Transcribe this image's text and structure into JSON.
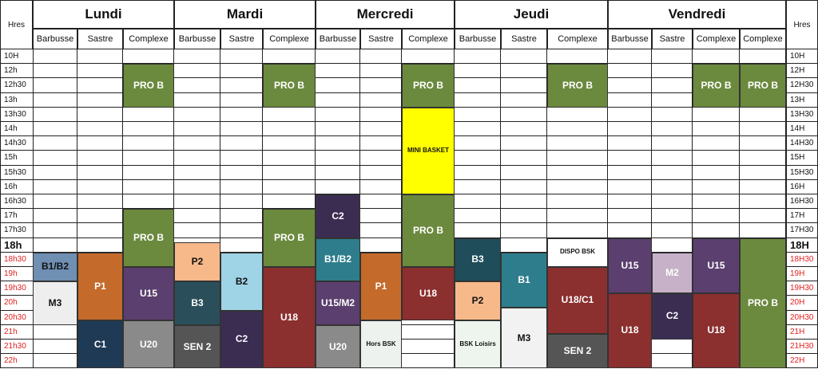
{
  "title_left": "Hres",
  "title_right": "Hres",
  "days": [
    {
      "name": "Lundi",
      "venues": [
        "Barbusse",
        "Sastre",
        "Complexe"
      ]
    },
    {
      "name": "Mardi",
      "venues": [
        "Barbusse",
        "Sastre",
        "Complexe"
      ]
    },
    {
      "name": "Mercredi",
      "venues": [
        "Barbusse",
        "Sastre",
        "Complexe"
      ]
    },
    {
      "name": "Jeudi",
      "venues": [
        "Barbusse",
        "Sastre",
        "Complexe"
      ]
    },
    {
      "name": "Vendredi",
      "venues": [
        "Barbusse",
        "Sastre",
        "Complexe",
        "Complexe"
      ]
    }
  ],
  "times_left": [
    "10H",
    "12h",
    "12h30",
    "13h",
    "13h30",
    "14h",
    "14h30",
    "15h",
    "15h30",
    "16h",
    "16h30",
    "17h",
    "17h30",
    "18h",
    "18h30",
    "19h",
    "19h30",
    "20h",
    "20h30",
    "21h",
    "21h30",
    "22h"
  ],
  "times_right": [
    "10H",
    "12H",
    "12H30",
    "13H",
    "13H30",
    "14H",
    "14H30",
    "15H",
    "15H30",
    "16H",
    "16H30",
    "17H",
    "17H30",
    "18H",
    "18H30",
    "19H",
    "19H30",
    "20H",
    "20H30",
    "21H",
    "21H30",
    "22H"
  ],
  "sessions": [
    {
      "label": "PRO B",
      "col": 2,
      "start": 1,
      "end": 4,
      "color": "#6b8a3e"
    },
    {
      "label": "PRO B",
      "col": 5,
      "start": 1,
      "end": 4,
      "color": "#6b8a3e"
    },
    {
      "label": "PRO B",
      "col": 8,
      "start": 1,
      "end": 4,
      "color": "#6b8a3e"
    },
    {
      "label": "PRO B",
      "col": 11,
      "start": 1,
      "end": 4,
      "color": "#6b8a3e"
    },
    {
      "label": "PRO B",
      "col": 14,
      "start": 1,
      "end": 4,
      "color": "#6b8a3e"
    },
    {
      "label": "PRO B",
      "col": 15,
      "start": 1,
      "end": 4,
      "color": "#6b8a3e"
    },
    {
      "label": "MINI BASKET",
      "col": 8,
      "start": 4,
      "end": 10,
      "color": "#ffff00",
      "dark": true,
      "size": "small"
    },
    {
      "label": "C2",
      "col": 6,
      "start": 10,
      "end": 13,
      "color": "#3b2d52"
    },
    {
      "label": "PRO B",
      "col": 8,
      "start": 10,
      "end": 15,
      "color": "#6b8a3e"
    },
    {
      "label": "PRO B",
      "col": 2,
      "start": 11,
      "end": 15,
      "color": "#6b8a3e"
    },
    {
      "label": "PRO B",
      "col": 5,
      "start": 11,
      "end": 15,
      "color": "#6b8a3e"
    },
    {
      "label": "B3",
      "col": 9,
      "start": 13,
      "end": 16,
      "color": "#1f4d5a"
    },
    {
      "label": "DISPO BSK",
      "col": 11,
      "start": 13,
      "end": 15,
      "color": "#ffffff",
      "dark": true,
      "size": "small"
    },
    {
      "label": "B1/B2",
      "col": 6,
      "start": 13,
      "end": 16,
      "color": "#2e7d8c"
    },
    {
      "label": "P2",
      "col": 3,
      "start": 13.3,
      "end": 16,
      "color": "#f7b98a",
      "dark": true
    },
    {
      "label": "U15",
      "col": 12,
      "start": 13,
      "end": 16.8,
      "color": "#5b3f6e"
    },
    {
      "label": "U15",
      "col": 14,
      "start": 13,
      "end": 16.8,
      "color": "#5b3f6e"
    },
    {
      "label": "PRO B",
      "col": 15,
      "start": 13,
      "end": 22,
      "color": "#6b8a3e"
    },
    {
      "label": "B1/B2",
      "col": 0,
      "start": 14,
      "end": 16,
      "color": "#6f8fb3",
      "dark": true
    },
    {
      "label": "P1",
      "col": 1,
      "start": 14,
      "end": 18.7,
      "color": "#c46a2a"
    },
    {
      "label": "B2",
      "col": 4,
      "start": 14,
      "end": 18,
      "color": "#9fd3e6",
      "dark": true
    },
    {
      "label": "P1",
      "col": 7,
      "start": 14,
      "end": 18.7,
      "color": "#c46a2a"
    },
    {
      "label": "B1",
      "col": 10,
      "start": 14,
      "end": 17.8,
      "color": "#2e7d8c"
    },
    {
      "label": "M2",
      "col": 13,
      "start": 14,
      "end": 16.8,
      "color": "#c7b1c9"
    },
    {
      "label": "U15",
      "col": 2,
      "start": 15,
      "end": 18.7,
      "color": "#5b3f6e"
    },
    {
      "label": "U18",
      "col": 5,
      "start": 15,
      "end": 22,
      "color": "#8b2f2f"
    },
    {
      "label": "U18",
      "col": 8,
      "start": 15,
      "end": 18.7,
      "color": "#8b2f2f"
    },
    {
      "label": "U18/C1",
      "col": 11,
      "start": 15,
      "end": 19.6,
      "color": "#8b2f2f"
    },
    {
      "label": "U15/M2",
      "col": 6,
      "start": 16,
      "end": 19,
      "color": "#5b3f6e"
    },
    {
      "label": "P2",
      "col": 9,
      "start": 16,
      "end": 18.7,
      "color": "#f7b98a",
      "dark": true
    },
    {
      "label": "B3",
      "col": 3,
      "start": 16,
      "end": 19,
      "color": "#2a4f5a"
    },
    {
      "label": "M3",
      "col": 0,
      "start": 16,
      "end": 19,
      "color": "#eeeeee",
      "dark": true
    },
    {
      "label": "U18",
      "col": 12,
      "start": 16.8,
      "end": 22,
      "color": "#8b2f2f"
    },
    {
      "label": "C2",
      "col": 13,
      "start": 16.8,
      "end": 20,
      "color": "#3b2d52"
    },
    {
      "label": "U18",
      "col": 14,
      "start": 16.8,
      "end": 22,
      "color": "#8b2f2f"
    },
    {
      "label": "M3",
      "col": 10,
      "start": 17.8,
      "end": 22,
      "color": "#f2f2f2",
      "dark": true
    },
    {
      "label": "C1",
      "col": 1,
      "start": 18.7,
      "end": 22,
      "color": "#1f3a55"
    },
    {
      "label": "C2",
      "col": 4,
      "start": 18,
      "end": 22,
      "color": "#3b2d52"
    },
    {
      "label": "U20",
      "col": 2,
      "start": 18.7,
      "end": 22,
      "color": "#8a8a8a"
    },
    {
      "label": "Hors BSK",
      "col": 7,
      "start": 18.7,
      "end": 22,
      "color": "#eef2ee",
      "dark": true,
      "size": "small"
    },
    {
      "label": "U20",
      "col": 6,
      "start": 19,
      "end": 22,
      "color": "#8a8a8a"
    },
    {
      "label": "SEN 2",
      "col": 3,
      "start": 19,
      "end": 22,
      "color": "#555555"
    },
    {
      "label": "BSK Loisirs",
      "col": 9,
      "start": 18.7,
      "end": 22,
      "color": "#eef4ee",
      "dark": true,
      "size": "small"
    },
    {
      "label": "SEN 2",
      "col": 11,
      "start": 19.6,
      "end": 22,
      "color": "#555555"
    }
  ]
}
